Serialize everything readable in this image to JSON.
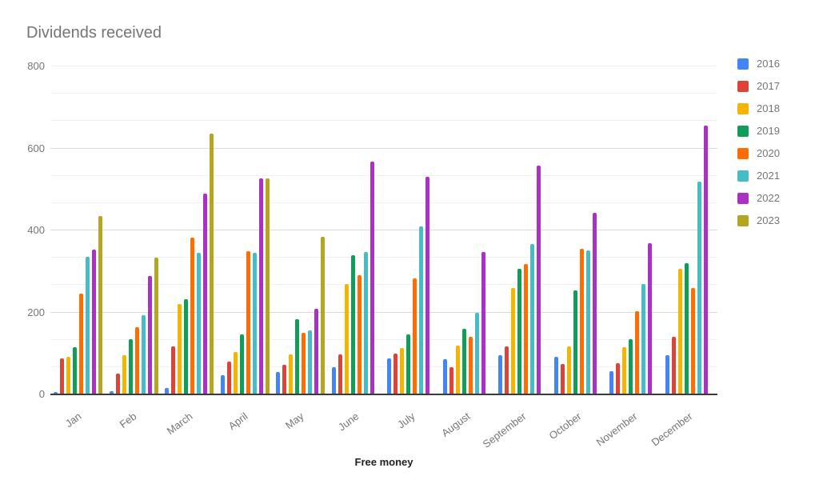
{
  "header": {
    "title": "Dividends received"
  },
  "chart_data": {
    "type": "bar",
    "title": "Dividends received",
    "xlabel": "Free money",
    "ylabel": "",
    "ylim": [
      0,
      800
    ],
    "yticks": [
      0,
      200,
      400,
      600,
      800
    ],
    "minor_gridlines_per_major": 2,
    "grid": true,
    "legend_position": "right",
    "categories": [
      "Jan",
      "Feb",
      "March",
      "April",
      "May",
      "June",
      "July",
      "August",
      "September",
      "October",
      "November",
      "December"
    ],
    "series": [
      {
        "name": "2016",
        "color": "#4285F4",
        "values": [
          5,
          8,
          15,
          46,
          55,
          66,
          88,
          86,
          96,
          92,
          57,
          96
        ]
      },
      {
        "name": "2017",
        "color": "#DB4437",
        "values": [
          88,
          50,
          117,
          80,
          72,
          98,
          99,
          66,
          117,
          75,
          77,
          140
        ]
      },
      {
        "name": "2018",
        "color": "#F4B400",
        "values": [
          92,
          96,
          220,
          103,
          97,
          270,
          114,
          120,
          260,
          118,
          115,
          307
        ]
      },
      {
        "name": "2019",
        "color": "#0F9D58",
        "values": [
          115,
          135,
          233,
          146,
          184,
          340,
          147,
          161,
          307,
          254,
          135,
          320
        ]
      },
      {
        "name": "2020",
        "color": "#FF6D01",
        "values": [
          245,
          163,
          383,
          349,
          150,
          290,
          282,
          140,
          318,
          356,
          203,
          260
        ]
      },
      {
        "name": "2021",
        "color": "#46BDC6",
        "values": [
          335,
          194,
          345,
          345,
          157,
          348,
          410,
          200,
          366,
          351,
          270,
          520
        ]
      },
      {
        "name": "2022",
        "color": "#AB30C4",
        "values": [
          353,
          289,
          489,
          527,
          208,
          568,
          530,
          348,
          558,
          442,
          368,
          655
        ]
      },
      {
        "name": "2023",
        "color": "#B5A622",
        "values": [
          435,
          333,
          637,
          526,
          385,
          null,
          null,
          null,
          null,
          null,
          null,
          null
        ]
      }
    ]
  }
}
